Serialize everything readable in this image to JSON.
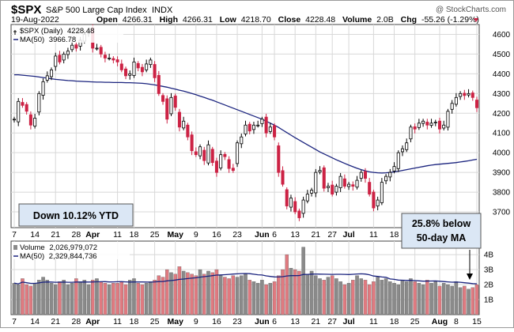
{
  "header": {
    "ticker": "$SPX",
    "name": "S&P 500 Large Cap Index",
    "exchange": "INDX",
    "watermark": "@ StockCharts.com",
    "date": "19-Aug-2022",
    "open_label": "Open",
    "open": "4266.31",
    "high_label": "High",
    "high": "4266.31",
    "low_label": "Low",
    "low": "4218.70",
    "close_label": "Close",
    "close": "4228.48",
    "volume_label": "Volume",
    "volume": "2.0B",
    "chg_label": "Chg",
    "chg": "-55.26 (-1.29%)"
  },
  "price_legend": {
    "series": "$SPX (Daily)",
    "series_value": "4228.48",
    "ma": "MA(50)",
    "ma_value": "3966.78"
  },
  "volume_legend": {
    "series": "Volume",
    "series_value": "2,026,979,072",
    "ma": "MA(50)",
    "ma_value": "2,329,844,736"
  },
  "annotations": {
    "ytd": "Down 10.12% YTD",
    "ma_below_line1": "25.8% below",
    "ma_below_line2": "50-day MA"
  },
  "x_ticks": [
    {
      "label": "7",
      "i": 0,
      "bold": false
    },
    {
      "label": "14",
      "i": 5,
      "bold": false
    },
    {
      "label": "21",
      "i": 10,
      "bold": false
    },
    {
      "label": "28",
      "i": 15,
      "bold": false
    },
    {
      "label": "Apr",
      "i": 19,
      "bold": true
    },
    {
      "label": "11",
      "i": 25,
      "bold": false
    },
    {
      "label": "18",
      "i": 29,
      "bold": false
    },
    {
      "label": "25",
      "i": 34,
      "bold": false
    },
    {
      "label": "May",
      "i": 39,
      "bold": true
    },
    {
      "label": "9",
      "i": 44,
      "bold": false
    },
    {
      "label": "16",
      "i": 49,
      "bold": false
    },
    {
      "label": "23",
      "i": 54,
      "bold": false
    },
    {
      "label": "Jun",
      "i": 60,
      "bold": true
    },
    {
      "label": "6",
      "i": 63,
      "bold": false
    },
    {
      "label": "13",
      "i": 68,
      "bold": false
    },
    {
      "label": "21",
      "i": 73,
      "bold": false
    },
    {
      "label": "27",
      "i": 77,
      "bold": false
    },
    {
      "label": "Jul",
      "i": 81,
      "bold": true
    },
    {
      "label": "11",
      "i": 87,
      "bold": false
    },
    {
      "label": "18",
      "i": 92,
      "bold": false
    },
    {
      "label": "25",
      "i": 97,
      "bold": false
    },
    {
      "label": "Aug",
      "i": 103,
      "bold": true
    },
    {
      "label": "8",
      "i": 107,
      "bold": false
    },
    {
      "label": "15",
      "i": 112,
      "bold": false
    }
  ],
  "colors": {
    "up": "#ffffff",
    "down": "#cc2244",
    "ma": "#1a237e",
    "vol_up": "#8a8a8a",
    "vol_down": "#e07a80",
    "grid": "#d8d8d8",
    "frame": "#444444"
  },
  "chart_data": {
    "type": "candlestick",
    "price_ylim": [
      3620,
      4650
    ],
    "price_yticks": [
      3700,
      3800,
      3900,
      4000,
      4100,
      4200,
      4300,
      4400,
      4500,
      4600
    ],
    "volume_ylim": [
      0,
      4.9
    ],
    "volume_yticks": [
      1,
      2,
      3,
      4
    ],
    "volume_ytick_labels": [
      "1B",
      "2B",
      "3B",
      "4B"
    ],
    "close": [
      4170,
      4260,
      4240,
      4210,
      4140,
      4175,
      4300,
      4360,
      4390,
      4420,
      4490,
      4460,
      4500,
      4515,
      4545,
      4530,
      4570,
      4600,
      4620,
      4530,
      4530,
      4500,
      4480,
      4480,
      4470,
      4460,
      4420,
      4390,
      4400,
      4460,
      4430,
      4410,
      4450,
      4470,
      4380,
      4300,
      4260,
      4170,
      4280,
      4230,
      4130,
      4160,
      4080,
      4010,
      3990,
      4030,
      3960,
      4040,
      3950,
      3900,
      3990,
      3980,
      3920,
      3910,
      4050,
      4080,
      4140,
      4110,
      4140,
      4140,
      4170,
      4100,
      4130,
      4080,
      3900,
      3840,
      3730,
      3770,
      3700,
      3670,
      3760,
      3790,
      3810,
      3900,
      3910,
      3820,
      3830,
      3790,
      3830,
      3880,
      3830,
      3840,
      3830,
      3860,
      3900,
      3870,
      3790,
      3720,
      3760,
      3850,
      3880,
      3900,
      3930,
      4000,
      4020,
      4050,
      4130,
      4120,
      4150,
      4160,
      4140,
      4150,
      4155,
      4120,
      4140,
      4210,
      4250,
      4280,
      4300,
      4290,
      4300,
      4280,
      4228
    ],
    "volume": [
      2.1,
      2.0,
      2.4,
      2.0,
      1.9,
      2.1,
      2.3,
      2.5,
      2.3,
      2.1,
      2.0,
      2.2,
      2.3,
      2.0,
      2.1,
      2.4,
      2.2,
      2.3,
      2.0,
      2.3,
      2.4,
      2.2,
      2.1,
      2.0,
      2.1,
      2.1,
      2.2,
      2.0,
      2.3,
      2.4,
      2.1,
      2.0,
      2.1,
      2.2,
      2.3,
      2.6,
      2.5,
      3.0,
      2.8,
      2.7,
      3.2,
      2.9,
      2.8,
      2.7,
      2.6,
      3.0,
      2.7,
      2.9,
      2.8,
      3.0,
      2.6,
      2.5,
      2.4,
      2.6,
      2.5,
      2.6,
      2.7,
      2.3,
      2.2,
      2.1,
      2.3,
      2.0,
      2.1,
      2.2,
      2.6,
      3.0,
      4.0,
      3.1,
      3.0,
      2.9,
      4.5,
      2.7,
      2.9,
      2.6,
      2.4,
      2.3,
      2.5,
      2.6,
      2.4,
      2.2,
      2.0,
      2.1,
      2.3,
      2.6,
      2.4,
      2.3,
      2.0,
      2.2,
      2.5,
      2.3,
      2.4,
      2.2,
      2.1,
      2.0,
      2.3,
      2.2,
      2.4,
      2.2,
      2.1,
      2.0,
      2.3,
      2.1,
      2.2,
      1.9,
      2.1,
      2.0,
      1.9,
      2.2,
      1.8,
      1.9,
      1.7,
      1.8,
      2.0
    ],
    "ma50": [
      4395,
      4395,
      4393,
      4391,
      4389,
      4387,
      4384,
      4381,
      4378,
      4375,
      4372,
      4370,
      4368,
      4366,
      4365,
      4363,
      4362,
      4361,
      4360,
      4359,
      4358,
      4358,
      4357,
      4357,
      4356,
      4356,
      4356,
      4355,
      4355,
      4354,
      4353,
      4352,
      4350,
      4347,
      4344,
      4340,
      4336,
      4332,
      4327,
      4322,
      4317,
      4312,
      4306,
      4300,
      4294,
      4287,
      4280,
      4273,
      4266,
      4258,
      4250,
      4242,
      4234,
      4226,
      4218,
      4210,
      4202,
      4194,
      4186,
      4178,
      4170,
      4160,
      4150,
      4140,
      4128,
      4115,
      4102,
      4089,
      4076,
      4064,
      4052,
      4040,
      4028,
      4016,
      4004,
      3994,
      3984,
      3974,
      3964,
      3955,
      3946,
      3937,
      3929,
      3921,
      3914,
      3908,
      3903,
      3900,
      3898,
      3897,
      3898,
      3900,
      3903,
      3906,
      3910,
      3914,
      3918,
      3922,
      3926,
      3930,
      3934,
      3937,
      3940,
      3942,
      3944,
      3946,
      3948,
      3950,
      3953,
      3956,
      3959,
      3963,
      3966.78
    ]
  }
}
